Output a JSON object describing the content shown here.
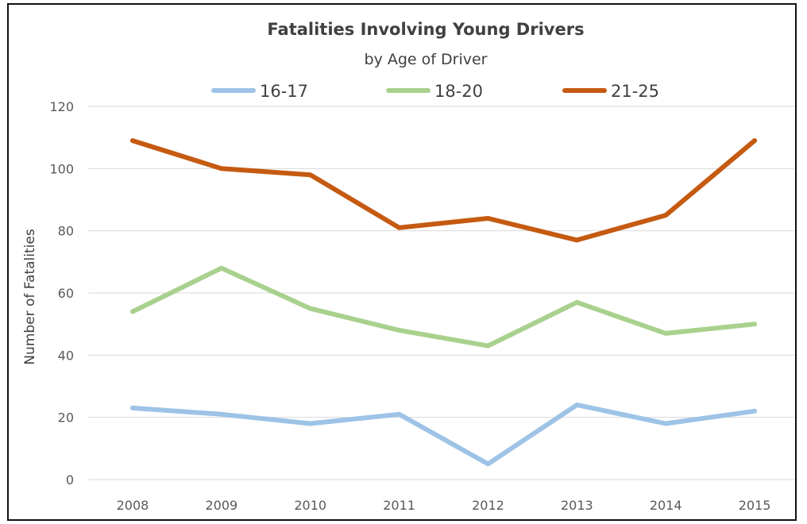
{
  "chart_data": {
    "type": "line",
    "title": "Fatalities Involving Young Drivers",
    "subtitle": "by Age of Driver",
    "xlabel": "",
    "ylabel": "Number of Fatalities",
    "categories": [
      "2008",
      "2009",
      "2010",
      "2011",
      "2012",
      "2013",
      "2014",
      "2015"
    ],
    "ylim": [
      0,
      120
    ],
    "yticks": [
      0,
      20,
      40,
      60,
      80,
      100,
      120
    ],
    "grid": true,
    "legend_position": "top",
    "series": [
      {
        "name": "16-17",
        "color": "#9dc3e6",
        "values": [
          23,
          21,
          18,
          21,
          5,
          24,
          18,
          22
        ]
      },
      {
        "name": "18-20",
        "color": "#a9d18e",
        "values": [
          54,
          68,
          55,
          48,
          43,
          57,
          47,
          50
        ]
      },
      {
        "name": "21-25",
        "color": "#c55a11",
        "values": [
          109,
          100,
          98,
          81,
          84,
          77,
          85,
          109
        ]
      }
    ]
  }
}
